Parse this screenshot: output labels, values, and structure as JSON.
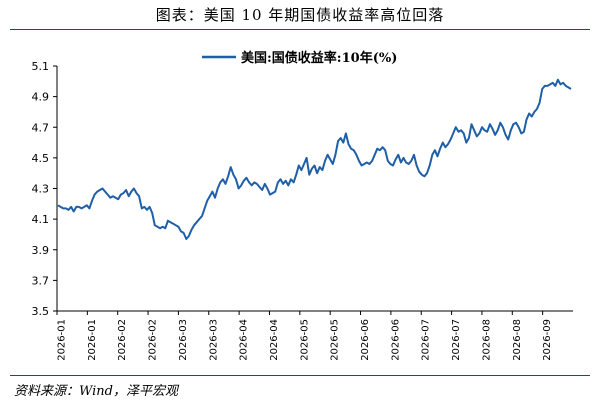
{
  "title": "图表：美国 10 年期国债收益率高位回落",
  "source": "资料来源：Wind，泽平宏观",
  "chart_data": {
    "type": "line",
    "title": "图表：美国 10 年期国债收益率高位回落",
    "ylim": [
      3.5,
      5.1
    ],
    "yticks": [
      "5.1",
      "4.9",
      "4.7",
      "4.5",
      "4.3",
      "4.1",
      "3.9",
      "3.7",
      "3.5"
    ],
    "xticks": [
      "2026-01",
      "2026-01",
      "2026-02",
      "2026-02",
      "2026-03",
      "2026-03",
      "2026-04",
      "2026-04",
      "2026-05",
      "2026-05",
      "2026-06",
      "2026-06",
      "2026-07",
      "2026-07",
      "2026-08",
      "2026-08",
      "2026-09"
    ],
    "legend_position": "top-center",
    "series": [
      {
        "name": "美国:国债收益率:10年(%)",
        "color": "#1f5fa8",
        "values": [
          4.19,
          4.18,
          4.17,
          4.17,
          4.16,
          4.18,
          4.15,
          4.18,
          4.18,
          4.17,
          4.18,
          4.19,
          4.17,
          4.22,
          4.26,
          4.28,
          4.29,
          4.3,
          4.28,
          4.26,
          4.24,
          4.25,
          4.24,
          4.23,
          4.26,
          4.27,
          4.29,
          4.25,
          4.28,
          4.3,
          4.27,
          4.25,
          4.17,
          4.18,
          4.16,
          4.18,
          4.14,
          4.06,
          4.05,
          4.04,
          4.05,
          4.04,
          4.09,
          4.08,
          4.07,
          4.06,
          4.05,
          4.02,
          4.01,
          3.97,
          3.99,
          4.03,
          4.06,
          4.08,
          4.1,
          4.12,
          4.17,
          4.22,
          4.25,
          4.28,
          4.24,
          4.3,
          4.34,
          4.36,
          4.33,
          4.38,
          4.44,
          4.39,
          4.36,
          4.3,
          4.32,
          4.35,
          4.37,
          4.34,
          4.32,
          4.34,
          4.33,
          4.31,
          4.29,
          4.33,
          4.3,
          4.26,
          4.27,
          4.28,
          4.34,
          4.36,
          4.33,
          4.35,
          4.32,
          4.36,
          4.34,
          4.39,
          4.45,
          4.42,
          4.46,
          4.5,
          4.39,
          4.43,
          4.45,
          4.4,
          4.44,
          4.42,
          4.48,
          4.52,
          4.49,
          4.46,
          4.52,
          4.61,
          4.63,
          4.6,
          4.66,
          4.59,
          4.56,
          4.55,
          4.52,
          4.48,
          4.45,
          4.46,
          4.47,
          4.46,
          4.48,
          4.52,
          4.56,
          4.55,
          4.57,
          4.55,
          4.48,
          4.46,
          4.45,
          4.49,
          4.52,
          4.47,
          4.5,
          4.47,
          4.46,
          4.48,
          4.52,
          4.45,
          4.41,
          4.39,
          4.38,
          4.4,
          4.45,
          4.52,
          4.55,
          4.51,
          4.56,
          4.6,
          4.57,
          4.59,
          4.62,
          4.66,
          4.7,
          4.67,
          4.68,
          4.66,
          4.6,
          4.63,
          4.72,
          4.68,
          4.64,
          4.66,
          4.7,
          4.68,
          4.67,
          4.72,
          4.69,
          4.65,
          4.68,
          4.73,
          4.7,
          4.65,
          4.62,
          4.68,
          4.72,
          4.73,
          4.7,
          4.66,
          4.67,
          4.75,
          4.79,
          4.77,
          4.8,
          4.82,
          4.86,
          4.95,
          4.97,
          4.97,
          4.98,
          4.99,
          4.97,
          5.01,
          4.98,
          4.99,
          4.97,
          4.96,
          4.95
        ]
      }
    ]
  }
}
